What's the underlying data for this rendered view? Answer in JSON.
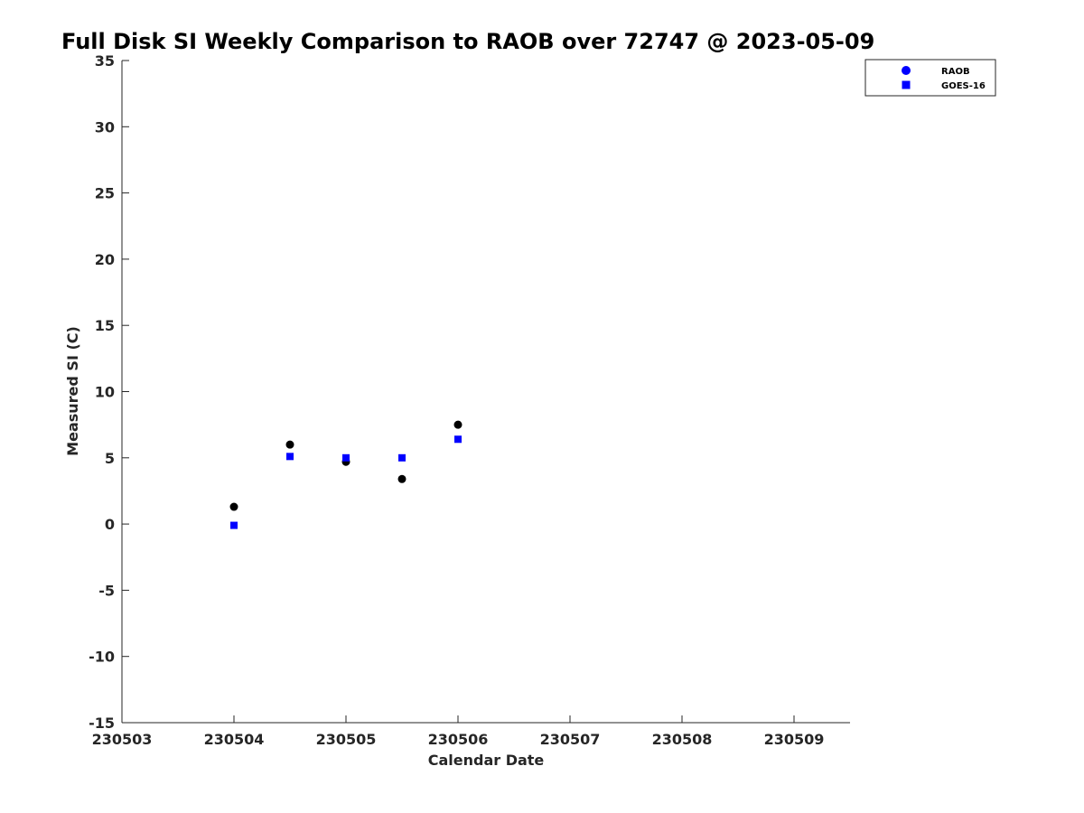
{
  "chart_data": {
    "type": "scatter",
    "title": "Full Disk SI Weekly Comparison to RAOB over 72747 @ 2023-05-09",
    "xlabel": "Calendar Date",
    "ylabel": "Measured SI (C)",
    "xlim": [
      "230503",
      "230509.5"
    ],
    "ylim": [
      -15,
      35
    ],
    "x_tick_labels": [
      "230503",
      "230504",
      "230505",
      "230506",
      "230507",
      "230508",
      "230509"
    ],
    "y_tick_labels": [
      "-15",
      "-10",
      "-5",
      "0",
      "5",
      "10",
      "15",
      "20",
      "25",
      "30",
      "35"
    ],
    "y_ticks": [
      -15,
      -10,
      -5,
      0,
      5,
      10,
      15,
      20,
      25,
      30,
      35
    ],
    "grid": false,
    "legend_position": "top-right",
    "series": [
      {
        "name": "RAOB",
        "marker": "circle",
        "color": "#000000",
        "legend_color": "#0000ff",
        "points": [
          {
            "x": "230504 00Z",
            "y": 1.3
          },
          {
            "x": "230504 12Z",
            "y": 6.0
          },
          {
            "x": "230505 00Z",
            "y": 4.7
          },
          {
            "x": "230505 12Z",
            "y": 3.4
          },
          {
            "x": "230506 00Z",
            "y": 7.5
          }
        ]
      },
      {
        "name": "GOES-16",
        "marker": "square",
        "color": "#0000ff",
        "legend_color": "#0000ff",
        "points": [
          {
            "x": "230504 00Z",
            "y": -0.1
          },
          {
            "x": "230504 12Z",
            "y": 5.1
          },
          {
            "x": "230505 00Z",
            "y": 5.0
          },
          {
            "x": "230505 12Z",
            "y": 5.0
          },
          {
            "x": "230506 00Z",
            "y": 6.4
          }
        ]
      }
    ]
  }
}
